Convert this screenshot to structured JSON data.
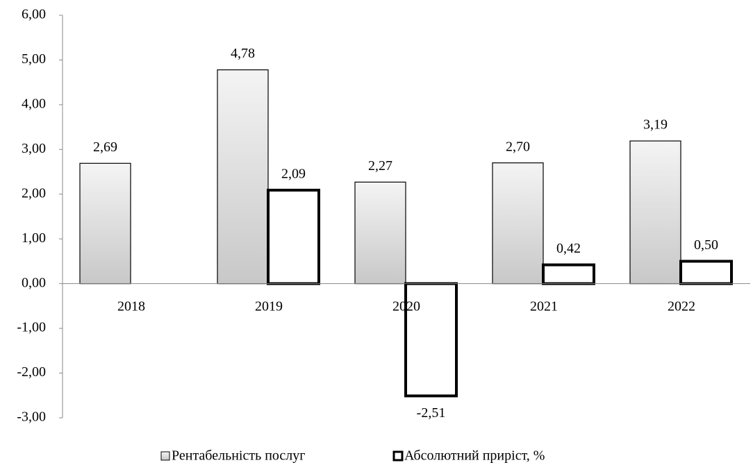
{
  "chart_data": {
    "type": "bar",
    "categories": [
      "2018",
      "2019",
      "2020",
      "2021",
      "2022"
    ],
    "series": [
      {
        "name": "Рентабельність послуг",
        "color": "#c8c8c8",
        "values": [
          2.69,
          4.78,
          2.27,
          2.7,
          3.19
        ],
        "value_labels": [
          "2,69",
          "4,78",
          "2,27",
          "2,70",
          "3,19"
        ]
      },
      {
        "name": "Абсолютний приріст, %",
        "color": "#ffffff",
        "values": [
          null,
          2.09,
          -2.51,
          0.42,
          0.5
        ],
        "value_labels": [
          null,
          "2,09",
          "-2,51",
          "0,42",
          "0,50"
        ]
      }
    ],
    "ylim": [
      -3,
      6
    ],
    "yticks": [
      {
        "value": -3,
        "label": "-3,00"
      },
      {
        "value": -2,
        "label": "-2,00"
      },
      {
        "value": -1,
        "label": "-1,00"
      },
      {
        "value": 0,
        "label": "0,00"
      },
      {
        "value": 1,
        "label": "1,00"
      },
      {
        "value": 2,
        "label": "2,00"
      },
      {
        "value": 3,
        "label": "3,00"
      },
      {
        "value": 4,
        "label": "4,00"
      },
      {
        "value": 5,
        "label": "5,00"
      },
      {
        "value": 6,
        "label": "6,00"
      }
    ],
    "grid": false,
    "legend": "bottom"
  }
}
